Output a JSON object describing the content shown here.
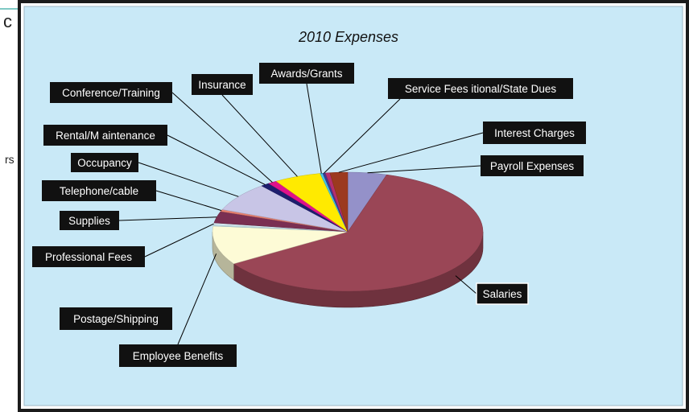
{
  "left_fragments": {
    "top": "c",
    "middle": "rs"
  },
  "colors": {
    "frame_border": "#1b1b1b",
    "plot_background": "#c9e9f7",
    "label_box_fill": "#111111",
    "label_box_text": "#ffffff",
    "leader_line": "#000000"
  },
  "chart_data": {
    "type": "pie",
    "three_d": true,
    "title": "2010 Expenses",
    "legend": "none",
    "slices": [
      {
        "label": "Payroll Expenses",
        "value": 4.4,
        "color": "#9491c9"
      },
      {
        "label": "Salaries",
        "value": 58.0,
        "color": "#9a4656"
      },
      {
        "label": "Employee Benefits",
        "value": 10.0,
        "color": "#fdfbd6"
      },
      {
        "label": "Postage/Shipping",
        "value": 0.3,
        "color": "#bfe1ea"
      },
      {
        "label": "Professional Fees",
        "value": 0.5,
        "color": "#d9eef6"
      },
      {
        "label": "Supplies",
        "value": 3.0,
        "color": "#7a2f52"
      },
      {
        "label": "Telephone/cable",
        "value": 0.5,
        "color": "#e8806e"
      },
      {
        "label": "Occupancy",
        "value": 7.5,
        "color": "#c8c5e6"
      },
      {
        "label": "Rental/M aintenance",
        "value": 1.0,
        "color": "#1e1e6e"
      },
      {
        "label": "Conference/Training",
        "value": 1.0,
        "color": "#e0128a"
      },
      {
        "label": "Insurance",
        "value": 5.3,
        "color": "#ffea00"
      },
      {
        "label": "Awards/Grants",
        "value": 0.3,
        "color": "#44c2e2"
      },
      {
        "label": "Service Fees",
        "value": 0.3,
        "color": "#3b3b93"
      },
      {
        "label": "itional/State Dues",
        "value": 0.5,
        "color": "#b62e6e"
      },
      {
        "label": "Interest Charges",
        "value": 2.0,
        "color": "#9c3a1f"
      }
    ],
    "callout_labels": [
      {
        "text": "Payroll Expenses",
        "slice": 0
      },
      {
        "text": "Salaries",
        "slice": 1
      },
      {
        "text": "Employee Benefits",
        "slice": 2
      },
      {
        "text": "Postage/Shipping",
        "slice": 3
      },
      {
        "text": "Professional Fees",
        "slice": 4
      },
      {
        "text": "Supplies",
        "slice": 5
      },
      {
        "text": "Telephone/cable",
        "slice": 6
      },
      {
        "text": "Occupancy",
        "slice": 7
      },
      {
        "text": "Rental/M aintenance",
        "slice": 8
      },
      {
        "text": "Conference/Training",
        "slice": 9
      },
      {
        "text": "Insurance",
        "slice": 10
      },
      {
        "text": "Awards/Grants",
        "slice": 11
      },
      {
        "text": "Service Fees itional/State Dues",
        "slice": 12
      },
      {
        "text": "Interest Charges",
        "slice": 14
      }
    ]
  }
}
